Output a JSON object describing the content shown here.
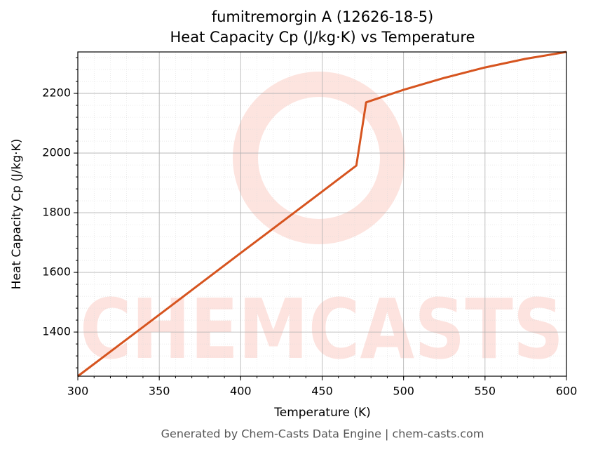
{
  "chart_data": {
    "type": "line",
    "title": [
      "fumitremorgin A (12626-18-5)",
      "Heat Capacity Cp (J/kg·K) vs Temperature"
    ],
    "x_label": "Temperature (K)",
    "y_label": "Heat Capacity Cp (J/kg·K)",
    "x": [
      300,
      350,
      400,
      450,
      471,
      477,
      500,
      525,
      550,
      575,
      600
    ],
    "series": [
      {
        "name": "Heat Capacity Cp",
        "color": "#d6541f",
        "values": [
          1252,
          1458,
          1665,
          1871,
          1958,
          2170,
          2212,
          2252,
          2287,
          2316,
          2339
        ]
      }
    ],
    "xlim": [
      300,
      600
    ],
    "xticks": [
      300,
      350,
      400,
      450,
      500,
      550,
      600
    ],
    "ylim": [
      1252,
      2339
    ],
    "yticks": [
      1400,
      1600,
      1800,
      2000,
      2200
    ],
    "grid": true,
    "minor_grid": true,
    "watermark": "CHEMCASTS",
    "footer": "Generated by Chem-Casts Data Engine | chem-casts.com"
  }
}
